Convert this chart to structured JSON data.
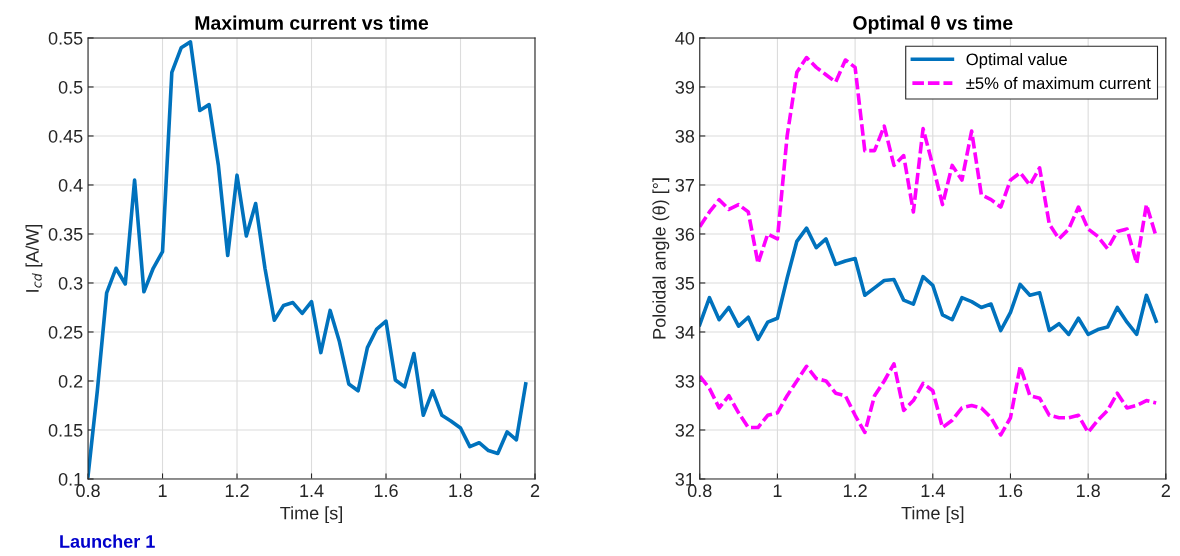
{
  "chart_data": [
    {
      "type": "line",
      "title": "Maximum current vs time",
      "xlabel": "Time [s]",
      "ylabel": "I$_{cd}$ [A/W]",
      "x": [
        0.8,
        0.825,
        0.85,
        0.875,
        0.9,
        0.925,
        0.95,
        0.975,
        1.0,
        1.025,
        1.05,
        1.075,
        1.1,
        1.125,
        1.15,
        1.175,
        1.2,
        1.225,
        1.25,
        1.275,
        1.3,
        1.325,
        1.35,
        1.375,
        1.4,
        1.425,
        1.45,
        1.475,
        1.5,
        1.525,
        1.55,
        1.575,
        1.6,
        1.625,
        1.65,
        1.675,
        1.7,
        1.725,
        1.75,
        1.775,
        1.8,
        1.825,
        1.85,
        1.875,
        1.9,
        1.925,
        1.95,
        1.975
      ],
      "series": [
        {
          "color": "#0072bd",
          "values": [
            0.103,
            0.19,
            0.29,
            0.315,
            0.299,
            0.405,
            0.291,
            0.315,
            0.332,
            0.515,
            0.54,
            0.546,
            0.476,
            0.482,
            0.42,
            0.328,
            0.41,
            0.348,
            0.381,
            0.315,
            0.262,
            0.277,
            0.28,
            0.269,
            0.281,
            0.229,
            0.272,
            0.24,
            0.197,
            0.19,
            0.234,
            0.253,
            0.261,
            0.201,
            0.194,
            0.228,
            0.165,
            0.19,
            0.165,
            0.159,
            0.152,
            0.133,
            0.137,
            0.129,
            0.126,
            0.148,
            0.14,
            0.197
          ]
        }
      ],
      "xlim": [
        0.8,
        2
      ],
      "xticks": [
        0.8,
        1,
        1.2,
        1.4,
        1.6,
        1.8,
        2
      ],
      "ylim": [
        0.1,
        0.55
      ],
      "yticks": [
        0.1,
        0.15,
        0.2,
        0.25,
        0.3,
        0.35,
        0.4,
        0.45,
        0.5,
        0.55
      ],
      "grid": true,
      "line_style": "solid",
      "annotations": [
        "Launcher 1"
      ]
    },
    {
      "type": "line",
      "title": "Optimal θ vs time",
      "xlabel": "Time [s]",
      "ylabel": "Poloidal angle (θ) [°]",
      "x": [
        0.8,
        0.825,
        0.85,
        0.875,
        0.9,
        0.925,
        0.95,
        0.975,
        1.0,
        1.025,
        1.05,
        1.075,
        1.1,
        1.125,
        1.15,
        1.175,
        1.2,
        1.225,
        1.25,
        1.275,
        1.3,
        1.325,
        1.35,
        1.375,
        1.4,
        1.425,
        1.45,
        1.475,
        1.5,
        1.525,
        1.55,
        1.575,
        1.6,
        1.625,
        1.65,
        1.675,
        1.7,
        1.725,
        1.75,
        1.775,
        1.8,
        1.825,
        1.85,
        1.875,
        1.9,
        1.925,
        1.95,
        1.975
      ],
      "series": [
        {
          "name": "Optimal value",
          "color": "#0072bd",
          "line_style": "solid",
          "values": [
            34.15,
            34.7,
            34.25,
            34.5,
            34.12,
            34.3,
            33.85,
            34.2,
            34.28,
            35.1,
            35.85,
            36.12,
            35.72,
            35.9,
            35.38,
            35.45,
            35.5,
            34.75,
            34.9,
            35.05,
            35.07,
            34.65,
            34.57,
            35.13,
            34.95,
            34.35,
            34.25,
            34.7,
            34.62,
            34.5,
            34.57,
            34.03,
            34.4,
            34.97,
            34.75,
            34.8,
            34.03,
            34.17,
            33.95,
            34.28,
            33.95,
            34.05,
            34.1,
            34.5,
            34.2,
            33.95,
            34.75,
            34.22
          ]
        },
        {
          "name": "±5% of maximum current",
          "color": "#ff00ff",
          "line_style": "dashed",
          "values": [
            36.15,
            36.45,
            36.7,
            36.5,
            36.6,
            36.45,
            35.4,
            36.0,
            35.9,
            38.0,
            39.3,
            39.6,
            39.4,
            39.25,
            39.1,
            39.55,
            39.4,
            37.7,
            37.7,
            38.2,
            37.4,
            37.6,
            36.45,
            38.15,
            37.4,
            36.6,
            37.4,
            37.1,
            38.1,
            36.8,
            36.7,
            36.55,
            37.1,
            37.25,
            37.0,
            37.35,
            36.2,
            35.9,
            36.1,
            36.55,
            36.1,
            35.95,
            35.7,
            36.05,
            36.1,
            35.4,
            36.6,
            35.95
          ]
        },
        {
          "color": "#ff00ff",
          "line_style": "dashed",
          "values": [
            33.1,
            32.85,
            32.45,
            32.7,
            32.35,
            32.05,
            32.05,
            32.3,
            32.35,
            32.7,
            33.0,
            33.3,
            33.05,
            33.0,
            32.75,
            32.7,
            32.3,
            31.95,
            32.7,
            33.0,
            33.35,
            32.4,
            32.6,
            32.95,
            32.8,
            32.05,
            32.2,
            32.45,
            32.5,
            32.45,
            32.25,
            31.9,
            32.25,
            33.3,
            32.7,
            32.65,
            32.3,
            32.25,
            32.25,
            32.3,
            31.95,
            32.2,
            32.4,
            32.75,
            32.45,
            32.5,
            32.6,
            32.55
          ]
        }
      ],
      "xlim": [
        0.8,
        2
      ],
      "xticks": [
        0.8,
        1,
        1.2,
        1.4,
        1.6,
        1.8,
        2
      ],
      "ylim": [
        31,
        40
      ],
      "yticks": [
        31,
        32,
        33,
        34,
        35,
        36,
        37,
        38,
        39,
        40
      ],
      "grid": true,
      "legend": "top right"
    }
  ]
}
